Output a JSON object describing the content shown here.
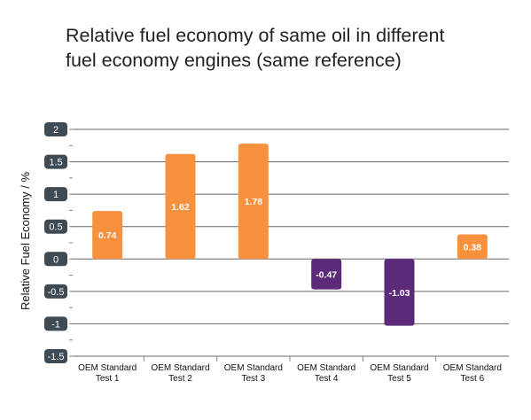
{
  "title_lines": [
    "Relative fuel economy of same oil in different",
    "fuel economy engines (same reference)"
  ],
  "chart_data": {
    "type": "bar",
    "title": "Relative fuel economy of same oil in different fuel economy engines (same reference)",
    "xlabel": "",
    "ylabel": "Relative Fuel Economy / %",
    "categories": [
      [
        "OEM Standard",
        "Test 1"
      ],
      [
        "OEM Standard",
        "Test 2"
      ],
      [
        "OEM Standard",
        "Test 3"
      ],
      [
        "OEM Standard",
        "Test 4"
      ],
      [
        "OEM Standard",
        "Test 5"
      ],
      [
        "OEM Standard",
        "Test 6"
      ]
    ],
    "values": [
      0.74,
      1.62,
      1.78,
      -0.47,
      -1.03,
      0.38
    ],
    "data_labels": [
      "0.74",
      "1.62",
      "1.78",
      "-0.47",
      "-1.03",
      "0.38"
    ],
    "ylim": [
      -1.5,
      2
    ],
    "yticks": [
      2,
      1.5,
      1,
      0.5,
      0,
      -0.5,
      -1,
      -1.5
    ],
    "ytick_labels": [
      "2",
      "1.5",
      "1",
      "0.5",
      "0",
      "-0.5",
      "-1",
      "-1.5"
    ],
    "grid": true,
    "colors": {
      "positive": "#f7913d",
      "negative": "#5b2b7a",
      "tick_badge": "#3e4a54",
      "grid": "#666666"
    }
  }
}
